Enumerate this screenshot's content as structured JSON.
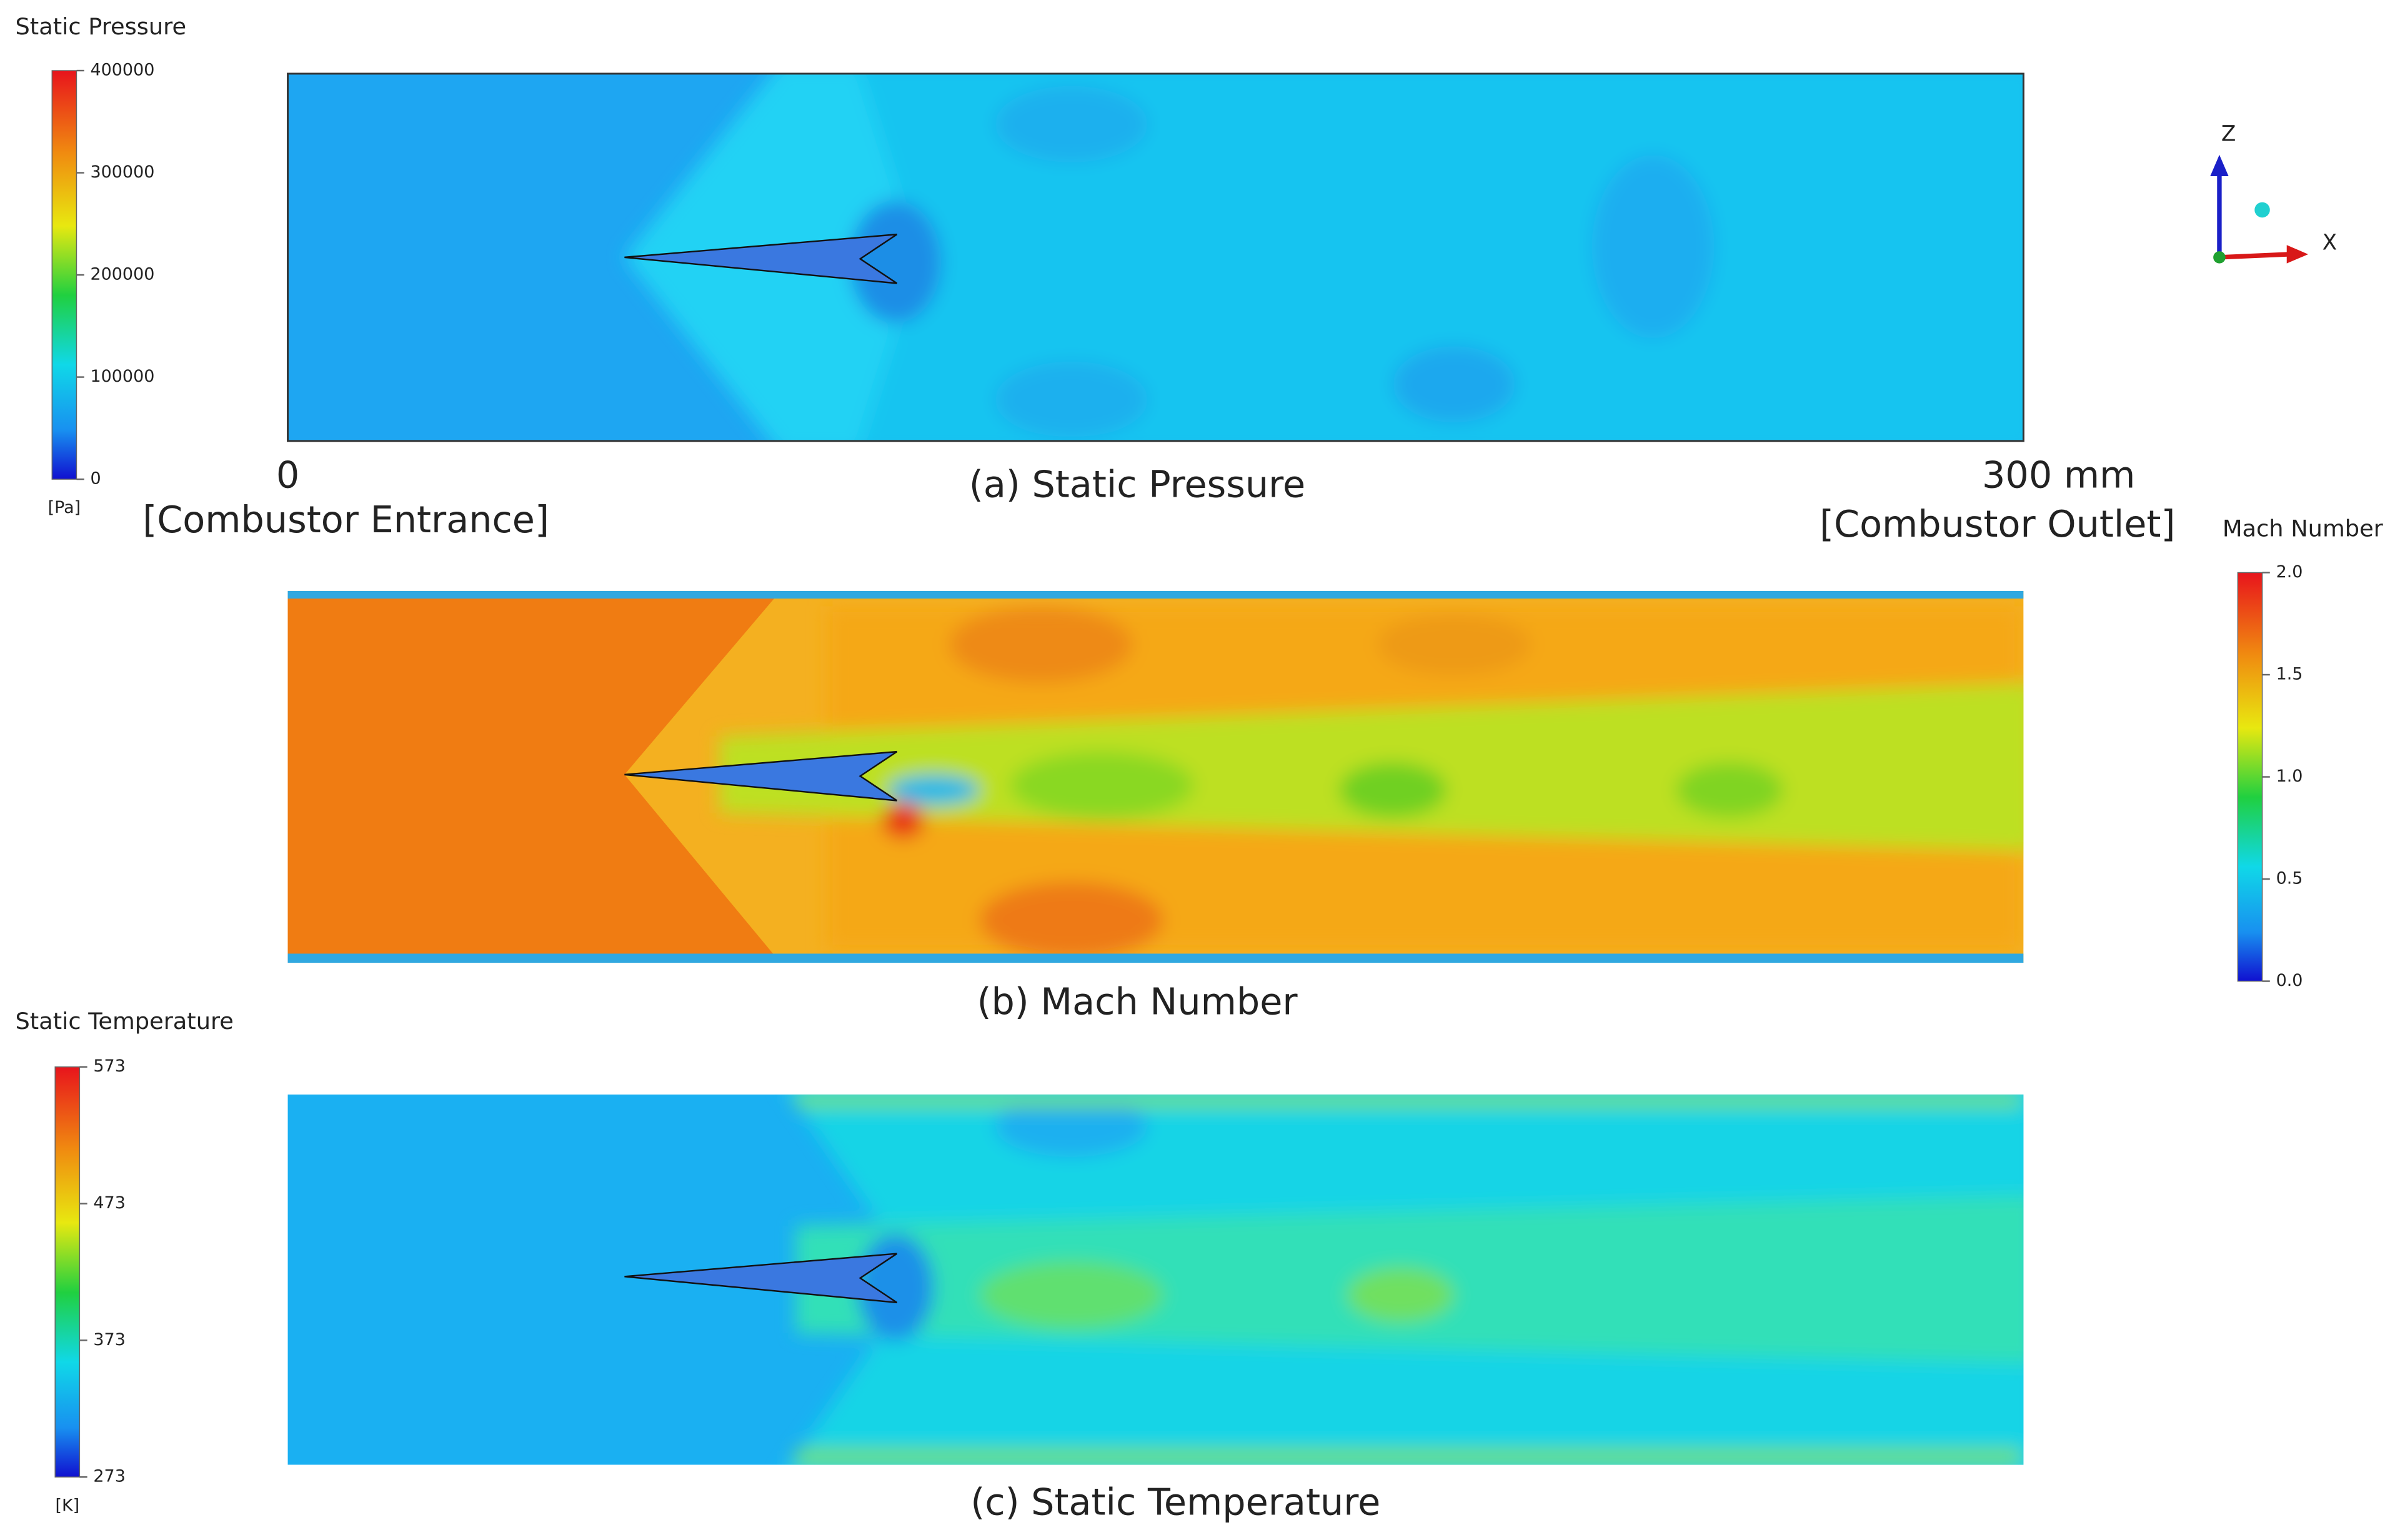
{
  "panels": [
    {
      "caption": "(a) Static Pressure",
      "legend": {
        "title": "Static Pressure",
        "unit": "[Pa]",
        "ticks": [
          "400000",
          "300000",
          "200000",
          "100000",
          "0"
        ]
      }
    },
    {
      "caption": "(b) Mach Number",
      "legend": {
        "title": "Mach Number",
        "ticks": [
          "2.0",
          "1.5",
          "1.0",
          "0.5",
          "0.0"
        ]
      }
    },
    {
      "caption": "(c) Static Temperature",
      "legend": {
        "title": "Static Temperature",
        "unit": "[K]",
        "ticks": [
          "573",
          "473",
          "373",
          "273"
        ]
      }
    }
  ],
  "axis": {
    "start": "0",
    "end": "300 mm",
    "start_label": "[Combustor Entrance]",
    "end_label": "[Combustor Outlet]"
  },
  "triad": {
    "z": "Z",
    "x": "X"
  }
}
